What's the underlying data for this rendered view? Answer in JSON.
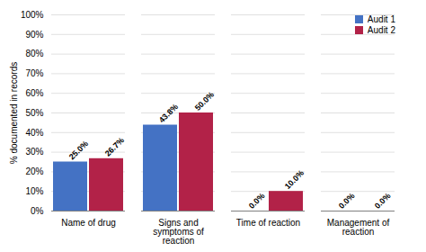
{
  "chart_data": {
    "type": "bar",
    "categories": [
      "Name of drug",
      "Signs and\nsymptoms of\nreaction",
      "Time of reaction",
      "Management of\nreaction"
    ],
    "series": [
      {
        "name": "Audit 1",
        "color": "#4472C4",
        "values": [
          25.0,
          43.8,
          0.0,
          0.0
        ],
        "value_labels": [
          "25.0%",
          "43.8%",
          "0.0%",
          "0.0%"
        ]
      },
      {
        "name": "Audit 2",
        "color": "#B22248",
        "values": [
          26.7,
          50.0,
          10.0,
          0.0
        ],
        "value_labels": [
          "26.7%",
          "50.0%",
          "10.0%",
          "0.0%"
        ]
      }
    ],
    "ylabel": "% documented in records",
    "ylim": [
      0,
      100
    ],
    "yticks": [
      {
        "value": 0,
        "label": "0%"
      },
      {
        "value": 10,
        "label": "10%"
      },
      {
        "value": 20,
        "label": "20%"
      },
      {
        "value": 30,
        "label": "30%"
      },
      {
        "value": 40,
        "label": "40%"
      },
      {
        "value": 50,
        "label": "50%"
      },
      {
        "value": 60,
        "label": "60%"
      },
      {
        "value": 70,
        "label": "70%"
      },
      {
        "value": 80,
        "label": "80%"
      },
      {
        "value": 90,
        "label": "90%"
      },
      {
        "value": 100,
        "label": "100%"
      }
    ],
    "grid": true,
    "legend": "upper right",
    "data_labels": true
  }
}
